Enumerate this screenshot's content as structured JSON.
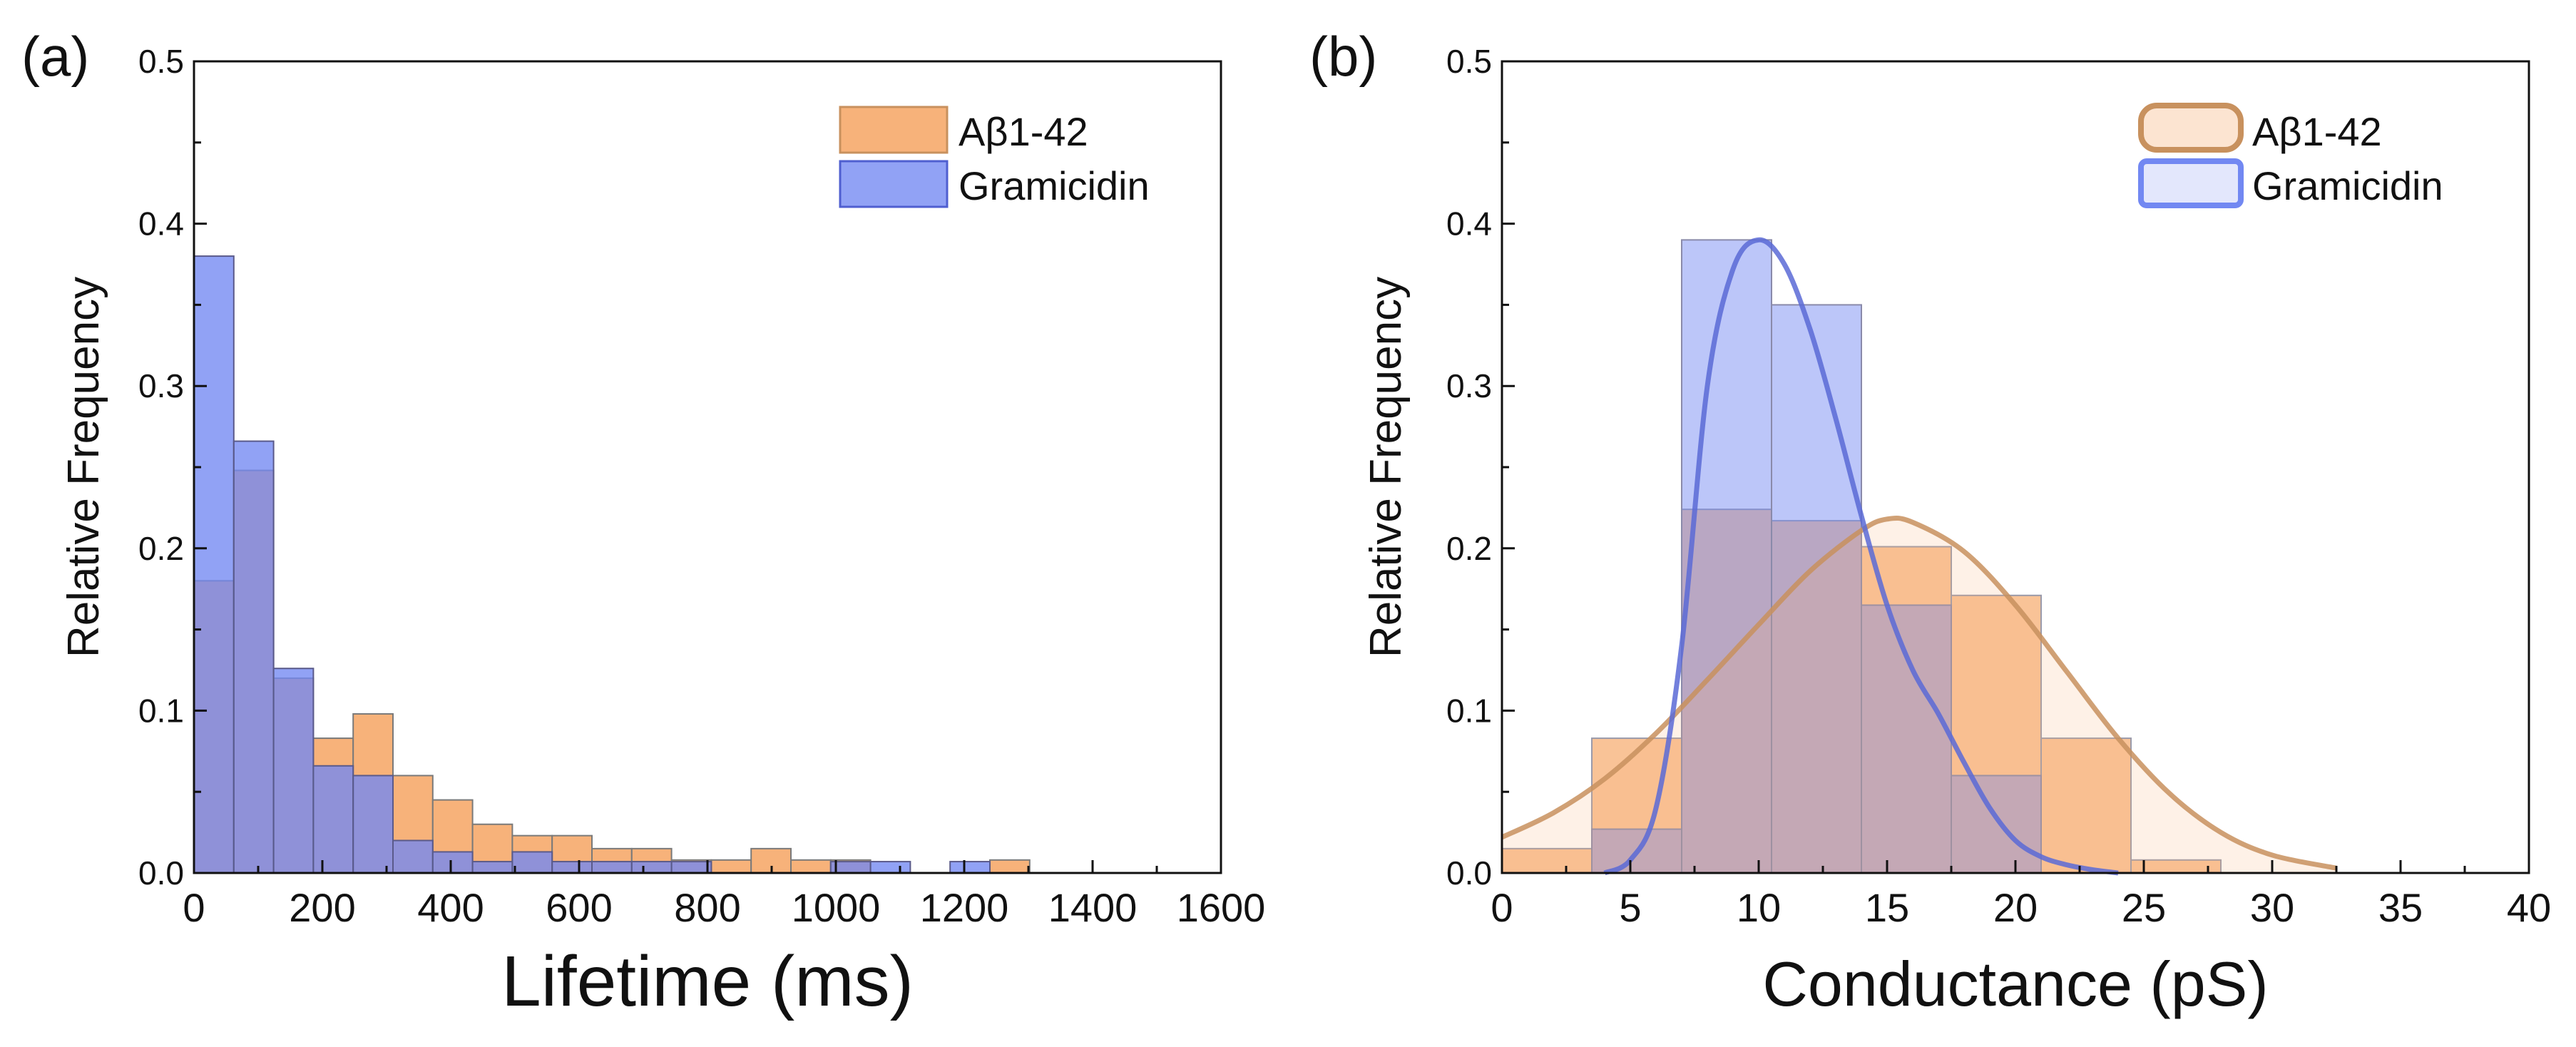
{
  "panels": [
    {
      "label": "(a)",
      "ylabel": "Relative Frequency",
      "xlabel": "Lifetime (ms)",
      "legend": [
        "Aβ1-42",
        "Gramicidin"
      ]
    },
    {
      "label": "(b)",
      "ylabel": "Relative Frequency",
      "xlabel": "Conductance (pS)",
      "legend": [
        "Aβ1-42",
        "Gramicidin"
      ]
    }
  ],
  "colors": {
    "abeta_fill": "#f7b27a",
    "abeta_edge": "#c8915e",
    "gram_fill": "#7288f2",
    "gram_edge": "#4f5fd0",
    "overlap": "#7862b8"
  },
  "chart_data": [
    {
      "type": "histogram",
      "panel": "(a)",
      "xlabel": "Lifetime (ms)",
      "ylabel": "Relative Frequency",
      "xlim": [
        0,
        1600
      ],
      "ylim": [
        0,
        0.5
      ],
      "xticks": [
        0,
        200,
        400,
        600,
        800,
        1000,
        1200,
        1400,
        1600
      ],
      "yticks": [
        0.0,
        0.1,
        0.2,
        0.3,
        0.4,
        0.5
      ],
      "bin_width": 62,
      "grid": false,
      "legend_position": "top-right",
      "series": [
        {
          "name": "Aβ1-42",
          "bins": [
            {
              "x0": 0,
              "x1": 62,
              "y": 0.18
            },
            {
              "x0": 62,
              "x1": 124,
              "y": 0.248
            },
            {
              "x0": 124,
              "x1": 186,
              "y": 0.12
            },
            {
              "x0": 186,
              "x1": 248,
              "y": 0.083
            },
            {
              "x0": 248,
              "x1": 310,
              "y": 0.098
            },
            {
              "x0": 310,
              "x1": 372,
              "y": 0.06
            },
            {
              "x0": 372,
              "x1": 434,
              "y": 0.045
            },
            {
              "x0": 434,
              "x1": 496,
              "y": 0.03
            },
            {
              "x0": 496,
              "x1": 558,
              "y": 0.023
            },
            {
              "x0": 558,
              "x1": 620,
              "y": 0.023
            },
            {
              "x0": 620,
              "x1": 682,
              "y": 0.015
            },
            {
              "x0": 682,
              "x1": 744,
              "y": 0.015
            },
            {
              "x0": 744,
              "x1": 806,
              "y": 0.008
            },
            {
              "x0": 806,
              "x1": 868,
              "y": 0.008
            },
            {
              "x0": 868,
              "x1": 930,
              "y": 0.015
            },
            {
              "x0": 930,
              "x1": 992,
              "y": 0.008
            },
            {
              "x0": 992,
              "x1": 1054,
              "y": 0.008
            },
            {
              "x0": 1054,
              "x1": 1116,
              "y": 0.0
            },
            {
              "x0": 1116,
              "x1": 1178,
              "y": 0.0
            },
            {
              "x0": 1178,
              "x1": 1240,
              "y": 0.0
            },
            {
              "x0": 1240,
              "x1": 1302,
              "y": 0.008
            }
          ]
        },
        {
          "name": "Gramicidin",
          "bins": [
            {
              "x0": 0,
              "x1": 62,
              "y": 0.38
            },
            {
              "x0": 62,
              "x1": 124,
              "y": 0.266
            },
            {
              "x0": 124,
              "x1": 186,
              "y": 0.126
            },
            {
              "x0": 186,
              "x1": 248,
              "y": 0.066
            },
            {
              "x0": 248,
              "x1": 310,
              "y": 0.06
            },
            {
              "x0": 310,
              "x1": 372,
              "y": 0.02
            },
            {
              "x0": 372,
              "x1": 434,
              "y": 0.013
            },
            {
              "x0": 434,
              "x1": 496,
              "y": 0.007
            },
            {
              "x0": 496,
              "x1": 558,
              "y": 0.013
            },
            {
              "x0": 558,
              "x1": 620,
              "y": 0.007
            },
            {
              "x0": 620,
              "x1": 682,
              "y": 0.007
            },
            {
              "x0": 682,
              "x1": 744,
              "y": 0.007
            },
            {
              "x0": 744,
              "x1": 806,
              "y": 0.007
            },
            {
              "x0": 806,
              "x1": 868,
              "y": 0.0
            },
            {
              "x0": 868,
              "x1": 930,
              "y": 0.0
            },
            {
              "x0": 930,
              "x1": 992,
              "y": 0.0
            },
            {
              "x0": 992,
              "x1": 1054,
              "y": 0.007
            },
            {
              "x0": 1054,
              "x1": 1116,
              "y": 0.007
            },
            {
              "x0": 1116,
              "x1": 1178,
              "y": 0.0
            },
            {
              "x0": 1178,
              "x1": 1240,
              "y": 0.007
            }
          ]
        }
      ]
    },
    {
      "type": "histogram",
      "panel": "(b)",
      "xlabel": "Conductance (pS)",
      "ylabel": "Relative Frequency",
      "xlim": [
        0,
        40
      ],
      "ylim": [
        0,
        0.5
      ],
      "xticks": [
        0,
        5,
        10,
        15,
        20,
        25,
        30,
        35,
        40
      ],
      "yticks": [
        0.0,
        0.1,
        0.2,
        0.3,
        0.4,
        0.5
      ],
      "bin_width": 3.5,
      "grid": false,
      "legend_position": "top-right",
      "series": [
        {
          "name": "Aβ1-42",
          "bins": [
            {
              "x0": 0,
              "x1": 3.5,
              "y": 0.015
            },
            {
              "x0": 3.5,
              "x1": 7,
              "y": 0.083
            },
            {
              "x0": 7,
              "x1": 10.5,
              "y": 0.224
            },
            {
              "x0": 10.5,
              "x1": 14,
              "y": 0.217
            },
            {
              "x0": 14,
              "x1": 17.5,
              "y": 0.201
            },
            {
              "x0": 17.5,
              "x1": 21,
              "y": 0.171
            },
            {
              "x0": 21,
              "x1": 24.5,
              "y": 0.083
            },
            {
              "x0": 24.5,
              "x1": 28,
              "y": 0.008
            }
          ],
          "fit_curve": {
            "x": [
              0,
              2,
              4,
              6,
              8,
              10,
              12,
              14,
              15,
              16,
              18,
              20,
              22,
              24,
              26,
              28,
              30,
              32.5
            ],
            "y": [
              0.022,
              0.037,
              0.058,
              0.086,
              0.119,
              0.153,
              0.186,
              0.211,
              0.218,
              0.216,
              0.198,
              0.165,
              0.124,
              0.083,
              0.049,
              0.025,
              0.011,
              0.003
            ]
          }
        },
        {
          "name": "Gramicidin",
          "bins": [
            {
              "x0": 3.5,
              "x1": 7,
              "y": 0.027
            },
            {
              "x0": 7,
              "x1": 10.5,
              "y": 0.39
            },
            {
              "x0": 10.5,
              "x1": 14,
              "y": 0.35
            },
            {
              "x0": 14,
              "x1": 17.5,
              "y": 0.165
            },
            {
              "x0": 17.5,
              "x1": 21,
              "y": 0.06
            },
            {
              "x0": 21,
              "x1": 24.5,
              "y": 0.0
            }
          ],
          "fit_curve": {
            "x": [
              4,
              5,
              6,
              7,
              8,
              9,
              10,
              11,
              12,
              13,
              14,
              15,
              16,
              17,
              18,
              19,
              20,
              21,
              22,
              23,
              24
            ],
            "y": [
              0.0,
              0.008,
              0.04,
              0.14,
              0.3,
              0.372,
              0.39,
              0.375,
              0.335,
              0.28,
              0.22,
              0.165,
              0.125,
              0.098,
              0.068,
              0.04,
              0.02,
              0.01,
              0.005,
              0.002,
              0.0
            ]
          }
        }
      ]
    }
  ]
}
